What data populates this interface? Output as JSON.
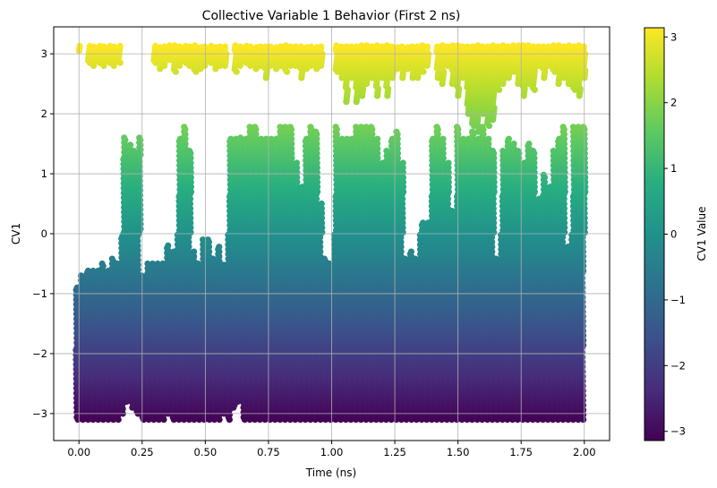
{
  "chart_data": {
    "type": "scatter",
    "title": "Collective Variable 1 Behavior (First 2 ns)",
    "xlabel": "Time (ns)",
    "ylabel": "CV1",
    "xlim": [
      -0.1,
      2.1
    ],
    "ylim": [
      -3.45,
      3.45
    ],
    "x_ticks": [
      0.0,
      0.25,
      0.5,
      0.75,
      1.0,
      1.25,
      1.5,
      1.75,
      2.0
    ],
    "x_tick_labels": [
      "0.00",
      "0.25",
      "0.50",
      "0.75",
      "1.00",
      "1.25",
      "1.50",
      "1.75",
      "2.00"
    ],
    "y_ticks": [
      -3,
      -2,
      -1,
      0,
      1,
      2,
      3
    ],
    "y_tick_labels": [
      "−3",
      "−2",
      "−1",
      "0",
      "1",
      "2",
      "3"
    ],
    "grid": true,
    "colormap": "viridis",
    "colorbar": {
      "label": "CV1 Value",
      "range": [
        -3.14,
        3.14
      ],
      "ticks": [
        -3,
        -2,
        -1,
        0,
        1,
        2,
        3
      ],
      "tick_labels": [
        "−3",
        "−2",
        "−1",
        "0",
        "1",
        "2",
        "3"
      ]
    },
    "series": [
      {
        "comment_free_points": true,
        "points_x": [
          0.0,
          0.02,
          0.04,
          0.06,
          0.08,
          0.1,
          0.12,
          0.14,
          0.16,
          0.18,
          0.2,
          0.22,
          0.24,
          0.26,
          0.28,
          0.3,
          0.32,
          0.34,
          0.36,
          0.38,
          0.4,
          0.42,
          0.44,
          0.46,
          0.48,
          0.5,
          0.52,
          0.54,
          0.56,
          0.58,
          0.6,
          0.62,
          0.64,
          0.66,
          0.68,
          0.7,
          0.72,
          0.74,
          0.76,
          0.78,
          0.8,
          0.82,
          0.84,
          0.86,
          0.88,
          0.9,
          0.92,
          0.94,
          0.96,
          0.98,
          1.0,
          1.02,
          1.04,
          1.06,
          1.08,
          1.1,
          1.12,
          1.14,
          1.16,
          1.18,
          1.2,
          1.22,
          1.24,
          1.26,
          1.28,
          1.3,
          1.32,
          1.34,
          1.36,
          1.38,
          1.4,
          1.42,
          1.44,
          1.46,
          1.48,
          1.5,
          1.52,
          1.54,
          1.56,
          1.58,
          1.6,
          1.62,
          1.64,
          1.66,
          1.68,
          1.7,
          1.72,
          1.74,
          1.76,
          1.78,
          1.8,
          1.82,
          1.84,
          1.86,
          1.88,
          1.9,
          1.92,
          1.94,
          1.96,
          1.98,
          2.0
        ],
        "band_low": [
          -3.1,
          -3.1,
          -3.1,
          -3.1,
          -3.1,
          -3.1,
          -3.1,
          -3.1,
          -3.1,
          -3.0,
          -2.8,
          -2.9,
          -3.0,
          -3.1,
          -3.1,
          -3.1,
          -3.1,
          -3.1,
          -3.0,
          -3.1,
          -3.1,
          -3.1,
          -3.1,
          -3.1,
          -3.1,
          -3.1,
          -3.1,
          -3.1,
          -3.1,
          -3.0,
          -3.1,
          -2.9,
          -2.8,
          -3.1,
          -3.1,
          -3.1,
          -3.1,
          -3.1,
          -3.1,
          -3.1,
          -3.1,
          -3.1,
          -3.1,
          -3.1,
          -3.1,
          -3.1,
          -3.1,
          -3.1,
          -3.1,
          -3.1,
          -3.1,
          -3.1,
          -3.1,
          -3.1,
          -3.1,
          -3.1,
          -3.1,
          -3.1,
          -3.1,
          -3.1,
          -3.1,
          -3.1,
          -3.1,
          -3.1,
          -3.1,
          -3.1,
          -3.1,
          -3.1,
          -3.1,
          -3.1,
          -3.1,
          -3.1,
          -3.1,
          -3.1,
          -3.1,
          -3.1,
          -3.1,
          -3.1,
          -3.1,
          -3.1,
          -3.1,
          -3.1,
          -3.1,
          -3.1,
          -3.1,
          -3.1,
          -3.1,
          -3.1,
          -3.1,
          -3.1,
          -3.1,
          -3.1,
          -3.1,
          -3.1,
          -3.1,
          -3.1,
          -3.1,
          -3.1,
          -3.1,
          -3.1,
          -3.1
        ],
        "band_high": [
          -0.9,
          -0.7,
          -0.6,
          -0.6,
          -0.6,
          -0.5,
          -0.6,
          -0.4,
          -0.5,
          1.6,
          1.5,
          1.4,
          1.6,
          -0.7,
          -0.5,
          -0.5,
          -0.5,
          -0.5,
          -0.2,
          -0.3,
          1.6,
          1.8,
          1.4,
          -0.3,
          -0.5,
          -0.1,
          -0.1,
          -0.4,
          -0.2,
          -0.5,
          1.6,
          1.6,
          1.6,
          1.6,
          1.8,
          1.8,
          1.6,
          1.6,
          1.6,
          1.6,
          1.8,
          1.8,
          1.8,
          1.2,
          0.8,
          1.6,
          1.8,
          1.7,
          0.5,
          -0.4,
          -0.5,
          1.8,
          1.6,
          1.6,
          1.6,
          1.8,
          1.8,
          1.8,
          1.8,
          1.6,
          1.2,
          1.4,
          1.6,
          1.7,
          1.2,
          -0.4,
          -0.3,
          -0.4,
          0.2,
          0.2,
          1.6,
          1.8,
          1.6,
          1.2,
          0.4,
          1.8,
          1.6,
          1.6,
          1.7,
          1.6,
          1.8,
          1.6,
          1.4,
          -0.4,
          1.4,
          1.6,
          1.5,
          1.4,
          1.2,
          1.5,
          1.4,
          0.6,
          1.0,
          0.8,
          1.4,
          1.6,
          1.8,
          -0.2,
          1.8,
          1.8,
          1.8
        ],
        "top_x": [
          0.0,
          0.04,
          0.06,
          0.08,
          0.1,
          0.12,
          0.14,
          0.16,
          0.3,
          0.32,
          0.34,
          0.36,
          0.38,
          0.4,
          0.42,
          0.44,
          0.46,
          0.48,
          0.5,
          0.52,
          0.54,
          0.56,
          0.58,
          0.62,
          0.64,
          0.66,
          0.68,
          0.7,
          0.72,
          0.74,
          0.76,
          0.78,
          0.8,
          0.82,
          0.84,
          0.86,
          0.88,
          0.9,
          0.92,
          0.94,
          0.96,
          1.02,
          1.04,
          1.06,
          1.08,
          1.1,
          1.12,
          1.14,
          1.16,
          1.18,
          1.2,
          1.22,
          1.24,
          1.26,
          1.28,
          1.3,
          1.32,
          1.34,
          1.36,
          1.38,
          1.42,
          1.44,
          1.46,
          1.48,
          1.5,
          1.52,
          1.54,
          1.56,
          1.58,
          1.6,
          1.62,
          1.64,
          1.66,
          1.68,
          1.7,
          1.72,
          1.74,
          1.76,
          1.78,
          1.8,
          1.82,
          1.84,
          1.86,
          1.88,
          1.9,
          1.92,
          1.94,
          1.96,
          1.98,
          2.0
        ],
        "top_low": [
          3.05,
          2.85,
          2.8,
          2.85,
          2.8,
          2.85,
          2.8,
          2.85,
          2.85,
          2.75,
          2.8,
          2.9,
          2.7,
          2.8,
          2.85,
          2.8,
          2.7,
          2.75,
          2.8,
          2.85,
          2.75,
          2.8,
          2.8,
          2.7,
          2.8,
          2.85,
          2.8,
          2.75,
          2.8,
          2.6,
          2.8,
          2.75,
          2.8,
          2.7,
          2.8,
          2.8,
          2.6,
          2.75,
          2.8,
          2.75,
          2.8,
          2.7,
          2.6,
          2.2,
          2.6,
          2.2,
          2.3,
          2.5,
          2.6,
          2.3,
          2.6,
          2.3,
          2.6,
          2.75,
          2.6,
          2.75,
          2.6,
          2.6,
          2.7,
          2.8,
          2.6,
          2.5,
          2.8,
          2.5,
          2.3,
          2.6,
          2.0,
          1.8,
          1.7,
          2.0,
          1.8,
          1.9,
          2.4,
          2.5,
          2.6,
          2.7,
          2.5,
          2.3,
          2.5,
          2.4,
          2.8,
          2.6,
          2.8,
          2.7,
          2.5,
          2.6,
          2.5,
          2.4,
          2.3,
          2.6
        ]
      }
    ]
  }
}
